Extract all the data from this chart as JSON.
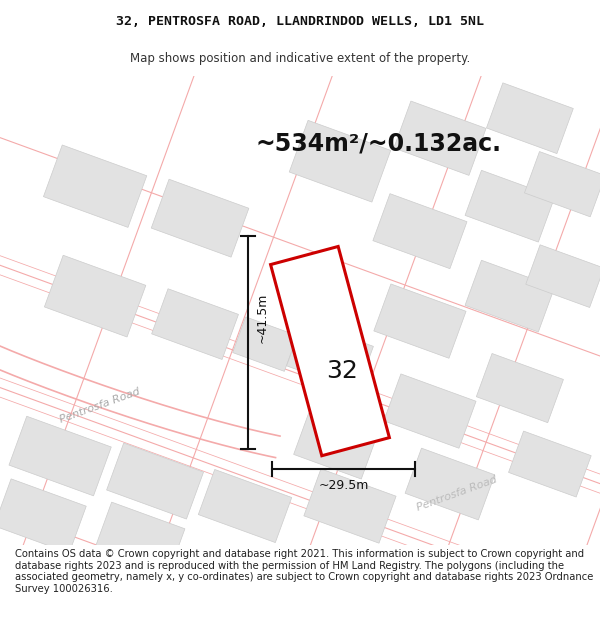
{
  "title_line1": "32, PENTROSFA ROAD, LLANDRINDOD WELLS, LD1 5NL",
  "title_line2": "Map shows position and indicative extent of the property.",
  "copyright_text": "Contains OS data © Crown copyright and database right 2021. This information is subject to Crown copyright and database rights 2023 and is reproduced with the permission of HM Land Registry. The polygons (including the associated geometry, namely x, y co-ordinates) are subject to Crown copyright and database rights 2023 Ordnance Survey 100026316.",
  "area_label": "~534m²/~0.132ac.",
  "dim_vertical": "~41.5m",
  "dim_horizontal": "~29.5m",
  "property_number": "32",
  "road_label_diag": "Pentrosfa Road",
  "road_label_left": "Pentrosfa Road",
  "bg_color": "#ffffff",
  "map_bg_color": "#f8f8f8",
  "building_fill": "#e2e2e2",
  "building_edge": "#cccccc",
  "road_line_color": "#f4aaaa",
  "property_color": "#cc0000",
  "dim_color": "#111111",
  "title_fontsize": 9.5,
  "subtitle_fontsize": 8.5,
  "area_fontsize": 17,
  "copyright_fontsize": 7.2,
  "road_lw": 0.8,
  "prop_lw": 2.2
}
